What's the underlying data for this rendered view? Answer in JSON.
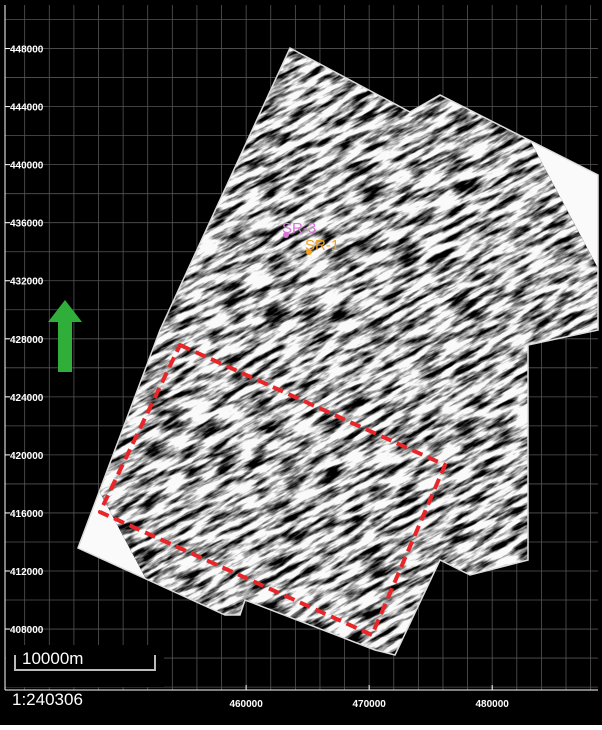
{
  "map": {
    "xlim": [
      440400,
      488600
    ],
    "ylim": [
      403800,
      451000
    ],
    "xticks": [
      460000,
      470000,
      480000
    ],
    "yticks": [
      448000,
      444000,
      440000,
      436000,
      432000,
      428000,
      424000,
      420000,
      416000,
      412000,
      408000
    ],
    "xgrid": [
      442000,
      444000,
      446000,
      448000,
      450000,
      452000,
      454000,
      456000,
      458000,
      460000,
      462000,
      464000,
      466000,
      468000,
      470000,
      472000,
      474000,
      476000,
      478000,
      480000,
      482000,
      484000,
      486000,
      488000
    ],
    "ygrid": [
      404000,
      406000,
      408000,
      410000,
      412000,
      414000,
      416000,
      418000,
      420000,
      422000,
      424000,
      426000,
      428000,
      430000,
      432000,
      434000,
      436000,
      438000,
      440000,
      442000,
      444000,
      446000,
      448000,
      450000
    ],
    "wells": [
      {
        "label": "SR-3",
        "color": "#d873d8"
      },
      {
        "label": "SR-1",
        "color": "#f0a020"
      }
    ],
    "scale_bar": "10000m",
    "scale_ratio": "1:240306"
  }
}
